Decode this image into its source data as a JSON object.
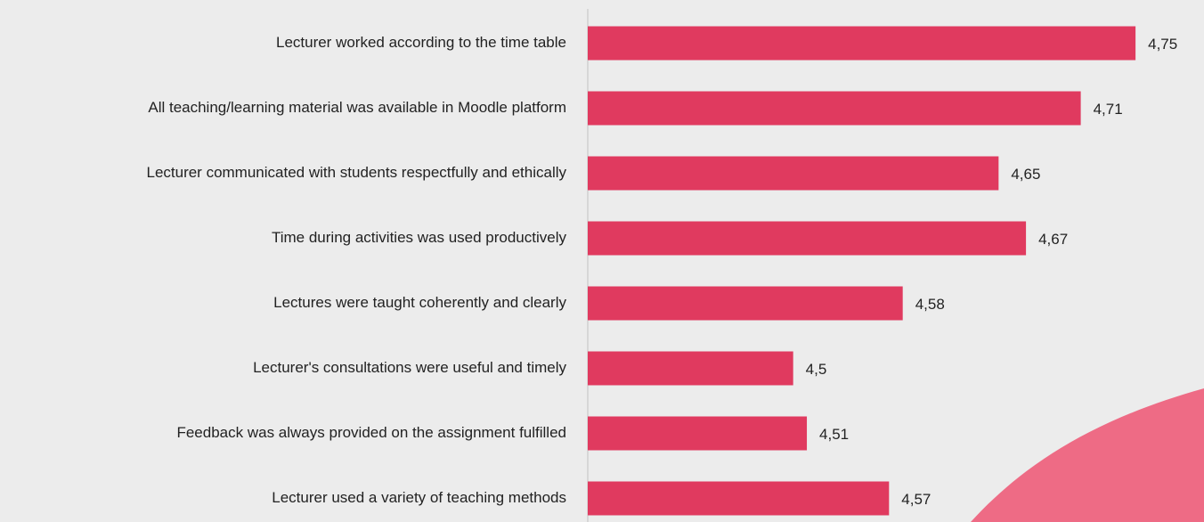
{
  "chart_data": {
    "type": "hbar",
    "categories": [
      "Lecturer worked according to the time table",
      "All teaching/learning material was available in Moodle  platform",
      "Lecturer communicated with students respectfully and ethically",
      "Time during activities was used productively",
      "Lectures were taught coherently and clearly",
      "Lecturer's consultations were useful and timely",
      "Feedback was always provided on the assignment fulfilled",
      "Lecturer used a variety of teaching methods"
    ],
    "values": [
      4.75,
      4.71,
      4.65,
      4.67,
      4.58,
      4.5,
      4.51,
      4.57
    ],
    "value_labels": [
      "4,75",
      "4,71",
      "4,65",
      "4,67",
      "4,58",
      "4,5",
      "4,51",
      "4,57"
    ],
    "color": "#e03a5f",
    "xlim": [
      4.35,
      4.8
    ]
  }
}
